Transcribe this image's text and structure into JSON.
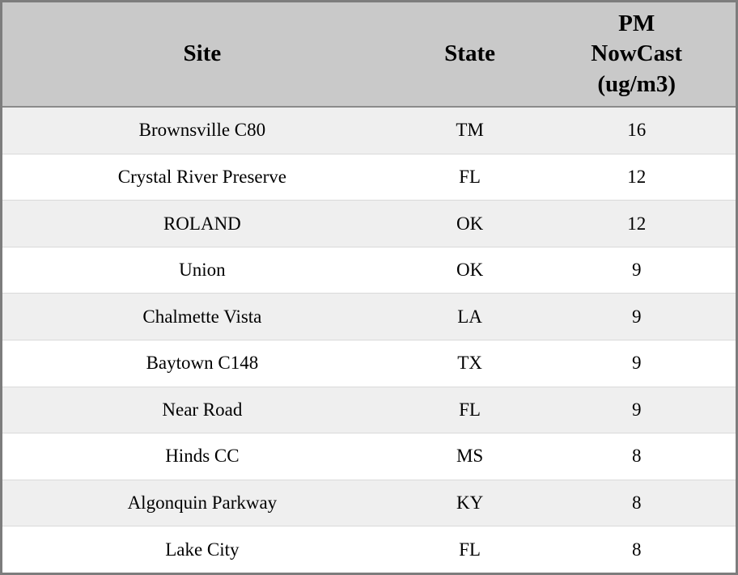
{
  "chart_data": {
    "type": "table",
    "title": "",
    "columns": [
      "Site",
      "State",
      "PM NowCast (ug/m3)"
    ],
    "rows": [
      [
        "Brownsville C80",
        "TM",
        16
      ],
      [
        "Crystal River Preserve",
        "FL",
        12
      ],
      [
        "ROLAND",
        "OK",
        12
      ],
      [
        "Union",
        "OK",
        9
      ],
      [
        "Chalmette Vista",
        "LA",
        9
      ],
      [
        "Baytown C148",
        "TX",
        9
      ],
      [
        "Near Road",
        "FL",
        9
      ],
      [
        "Hinds CC",
        "MS",
        8
      ],
      [
        "Algonquin Parkway",
        "KY",
        8
      ],
      [
        "Lake City",
        "FL",
        8
      ]
    ]
  },
  "header": {
    "site": "Site",
    "state": "State",
    "pm": "PM\nNowCast\n(ug/m3)"
  },
  "rows": [
    {
      "site": "Brownsville C80",
      "state": "TM",
      "value": "16"
    },
    {
      "site": "Crystal River Preserve",
      "state": "FL",
      "value": "12"
    },
    {
      "site": "ROLAND",
      "state": "OK",
      "value": "12"
    },
    {
      "site": "Union",
      "state": "OK",
      "value": "9"
    },
    {
      "site": "Chalmette Vista",
      "state": "LA",
      "value": "9"
    },
    {
      "site": "Baytown C148",
      "state": "TX",
      "value": "9"
    },
    {
      "site": "Near Road",
      "state": "FL",
      "value": "9"
    },
    {
      "site": "Hinds CC",
      "state": "MS",
      "value": "8"
    },
    {
      "site": "Algonquin Parkway",
      "state": "KY",
      "value": "8"
    },
    {
      "site": "Lake City",
      "state": "FL",
      "value": "8"
    }
  ],
  "colors": {
    "header_bg": "#c9c9c9",
    "row_alt_bg": "#efefef",
    "row_bg": "#ffffff",
    "outer_border": "#7d7d7d",
    "header_divider": "#8a8a8a"
  }
}
